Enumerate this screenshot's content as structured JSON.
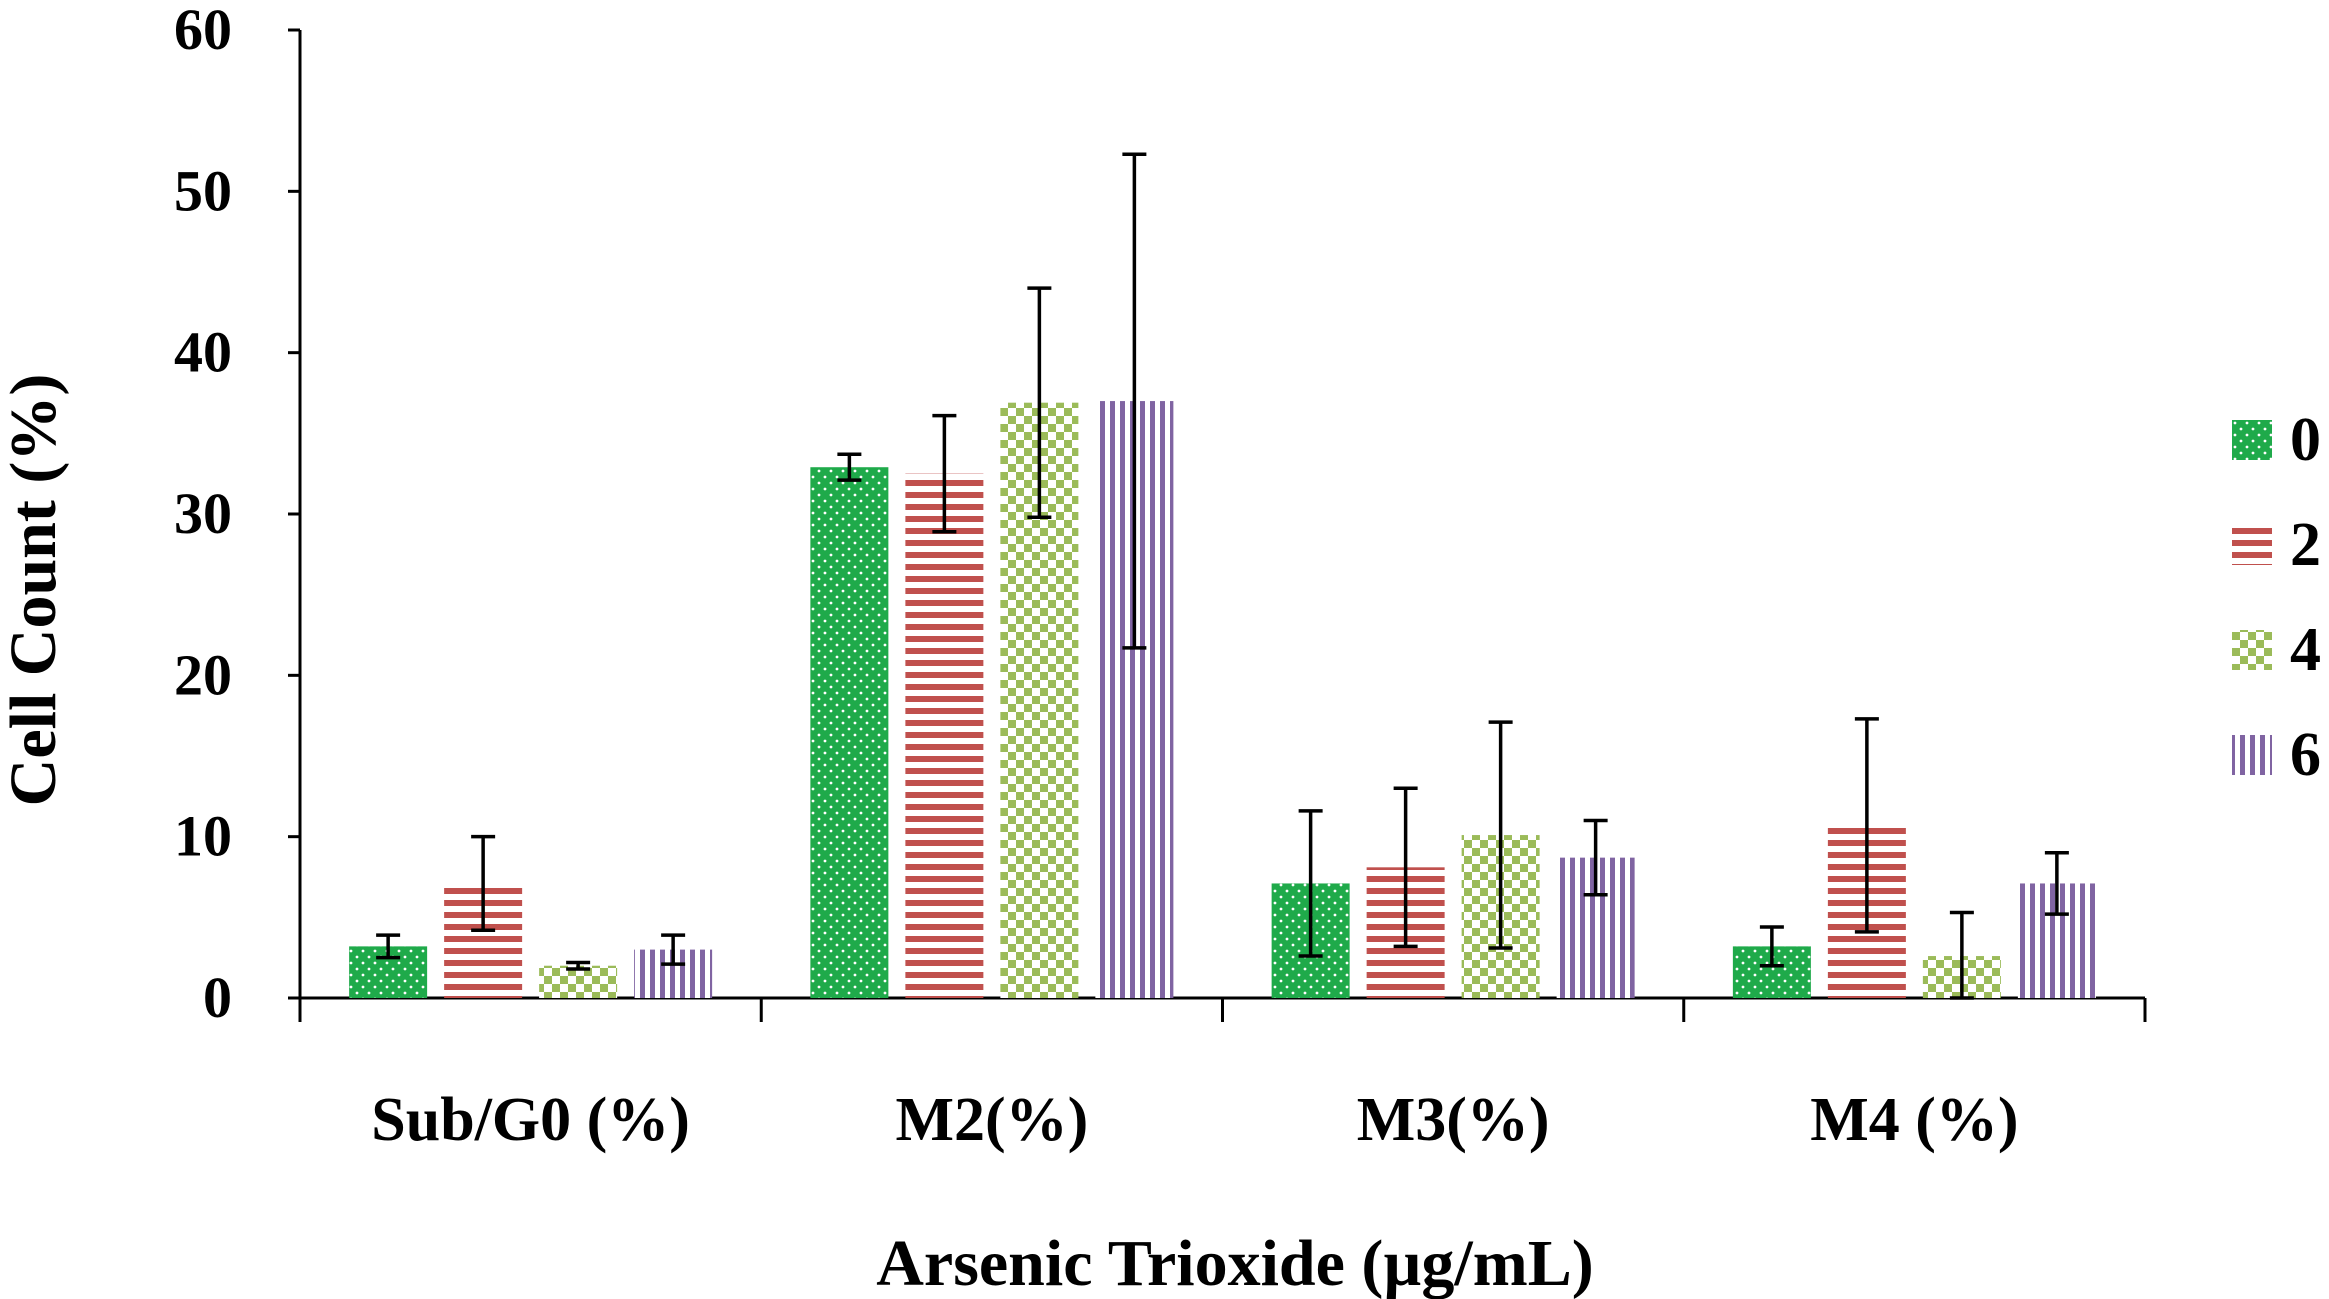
{
  "chart_data": {
    "type": "bar",
    "title": "",
    "xlabel": "Arsenic Trioxide (µg/mL)",
    "ylabel": "Cell Count (%)",
    "ylim": [
      0,
      60
    ],
    "yticks": [
      0,
      10,
      20,
      30,
      40,
      50,
      60
    ],
    "categories": [
      "Sub/G0 (%)",
      "M2(%)",
      "M3(%)",
      "M4 (%)"
    ],
    "legend_position": "right",
    "series": [
      {
        "name": "0",
        "color": "#1faa4a",
        "pattern": "dots",
        "values": [
          3.2,
          32.9,
          7.1,
          3.2
        ],
        "errors": [
          0.7,
          0.8,
          4.5,
          1.2
        ]
      },
      {
        "name": "2",
        "color": "#c0504d",
        "pattern": "horizontal-stripes",
        "values": [
          7.1,
          32.5,
          8.1,
          10.7
        ],
        "errors": [
          2.9,
          3.6,
          4.9,
          6.6
        ]
      },
      {
        "name": "4",
        "color": "#9bbb59",
        "pattern": "checker",
        "values": [
          2.0,
          36.9,
          10.1,
          2.6
        ],
        "errors": [
          0.2,
          7.1,
          7.0,
          2.7
        ]
      },
      {
        "name": "6",
        "color": "#8064a2",
        "pattern": "vertical-stripes",
        "values": [
          3.0,
          37.0,
          8.7,
          7.1
        ],
        "errors": [
          0.9,
          15.3,
          2.3,
          1.9
        ]
      }
    ]
  }
}
